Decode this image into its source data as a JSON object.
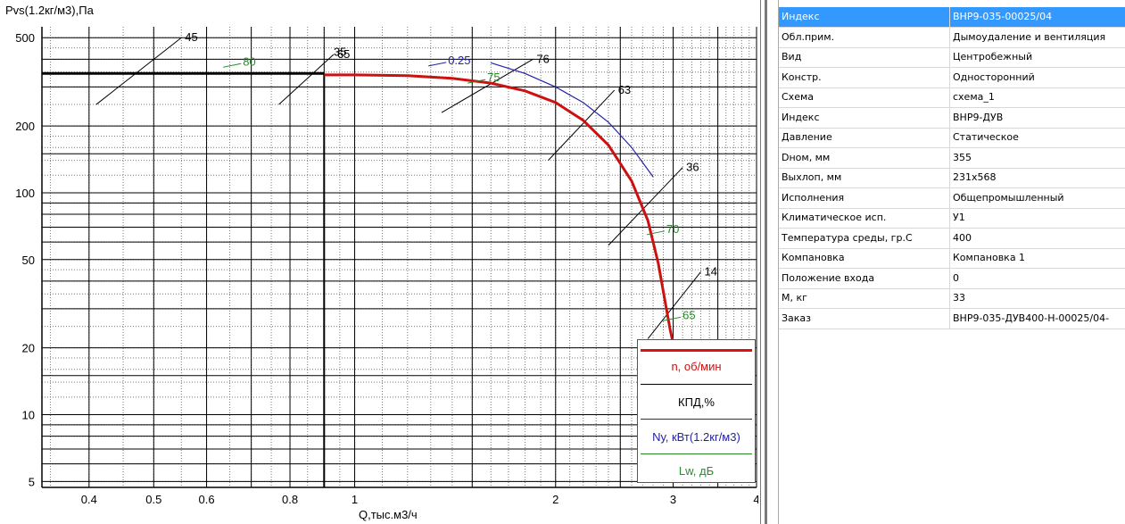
{
  "chart_data": {
    "type": "line",
    "ylabel": "Pvs(1.2кг/м3),Па",
    "xlabel": "Q,тыс.м3/ч",
    "x_scale": "log",
    "y_scale": "log",
    "xlim": [
      0.34,
      4
    ],
    "ylim": [
      4.7,
      560
    ],
    "x_ticks": [
      0.4,
      0.5,
      0.6,
      0.8,
      1,
      2,
      3,
      4
    ],
    "x_tick_labels": [
      "0.4",
      "0.5",
      "0.6",
      "0.8",
      "1",
      "2",
      "3",
      "4"
    ],
    "y_ticks": [
      5,
      10,
      20,
      50,
      100,
      200,
      500
    ],
    "y_tick_labels": [
      "5",
      "10",
      "20",
      "50",
      "100",
      "200",
      "500"
    ],
    "grid": true,
    "legend_placement": "bottom-right",
    "series": [
      {
        "name": "n, об/мин",
        "color": "#cc1111",
        "x": [
          0.9,
          1.0,
          1.2,
          1.4,
          1.6,
          1.8,
          2.0,
          2.2,
          2.4,
          2.6,
          2.75,
          2.85,
          2.92,
          2.97,
          3.0
        ],
        "y": [
          340,
          340,
          337,
          328,
          312,
          288,
          255,
          212,
          164,
          113,
          75,
          48,
          32,
          24,
          21
        ]
      },
      {
        "name": "Nу, кВт(1.2кг/м3)",
        "color": "#2222aa",
        "x": [
          1.6,
          1.8,
          2.0,
          2.2,
          2.4,
          2.6,
          2.8
        ],
        "y": [
          385,
          345,
          300,
          255,
          208,
          160,
          118
        ]
      }
    ],
    "operating_point": {
      "x": 0.9,
      "y": 345
    },
    "efficiency_lines": [
      {
        "label": "45",
        "x": [
          0.41,
          0.55
        ],
        "y": [
          250,
          500
        ]
      },
      {
        "label": "65",
        "x": [
          0.77,
          0.93
        ],
        "y": [
          250,
          420
        ]
      },
      {
        "label": "76",
        "x": [
          1.35,
          1.85
        ],
        "y": [
          230,
          400
        ]
      },
      {
        "label": "63",
        "x": [
          1.95,
          2.45
        ],
        "y": [
          140,
          290
        ]
      },
      {
        "label": "36",
        "x": [
          2.4,
          3.1
        ],
        "y": [
          58,
          130
        ]
      },
      {
        "label": "14",
        "x": [
          2.75,
          3.3
        ],
        "y": [
          22,
          44
        ]
      }
    ],
    "annotations": [
      {
        "text": "80",
        "x": 0.68,
        "y": 375,
        "color": "#2a8a2a"
      },
      {
        "text": "75",
        "x": 1.58,
        "y": 318,
        "color": "#2a8a2a"
      },
      {
        "text": "70",
        "x": 2.93,
        "y": 66,
        "color": "#2a8a2a"
      },
      {
        "text": "65",
        "x": 3.1,
        "y": 27,
        "color": "#2a8a2a"
      },
      {
        "text": "0.25",
        "x": 1.38,
        "y": 380,
        "color": "#2222aa"
      },
      {
        "text": "35",
        "x": 0.93,
        "y": 415,
        "color": "#000000"
      }
    ]
  },
  "legend": {
    "n_label": "n, об/мин",
    "kpd_label": "КПД,%",
    "ny_label": "Nу, кВт(1.2кг/м3)",
    "lw_label": "Lw, дБ",
    "n_color": "#dd1111",
    "kpd_color": "#000000",
    "ny_color": "#2222aa",
    "lw_color": "#2a8a2a"
  },
  "properties": [
    {
      "key": "Индекс",
      "value": "ВНР9-035-00025/04",
      "selected": true
    },
    {
      "key": "Обл.прим.",
      "value": "Дымоудаление и вентиляция"
    },
    {
      "key": "Вид",
      "value": "Центробежный"
    },
    {
      "key": "Констр.",
      "value": "Односторонний"
    },
    {
      "key": "Схема",
      "value": "схема_1"
    },
    {
      "key": "Индекс",
      "value": "ВНР9-ДУВ"
    },
    {
      "key": "Давление",
      "value": "Статическое"
    },
    {
      "key": "Dном, мм",
      "value": "355"
    },
    {
      "key": "Выхлоп, мм",
      "value": "231x568"
    },
    {
      "key": "Исполнения",
      "value": "Общепромышленный"
    },
    {
      "key": "Климатическое исп.",
      "value": "У1"
    },
    {
      "key": "Температура среды, гр.С",
      "value": "400"
    },
    {
      "key": "Компановка",
      "value": "Компановка 1"
    },
    {
      "key": "Положение входа",
      "value": "0"
    },
    {
      "key": "M, кг",
      "value": "33"
    },
    {
      "key": "Заказ",
      "value": "ВНР9-035-ДУВ400-Н-00025/04-"
    }
  ],
  "selection_color": "#3399ff"
}
